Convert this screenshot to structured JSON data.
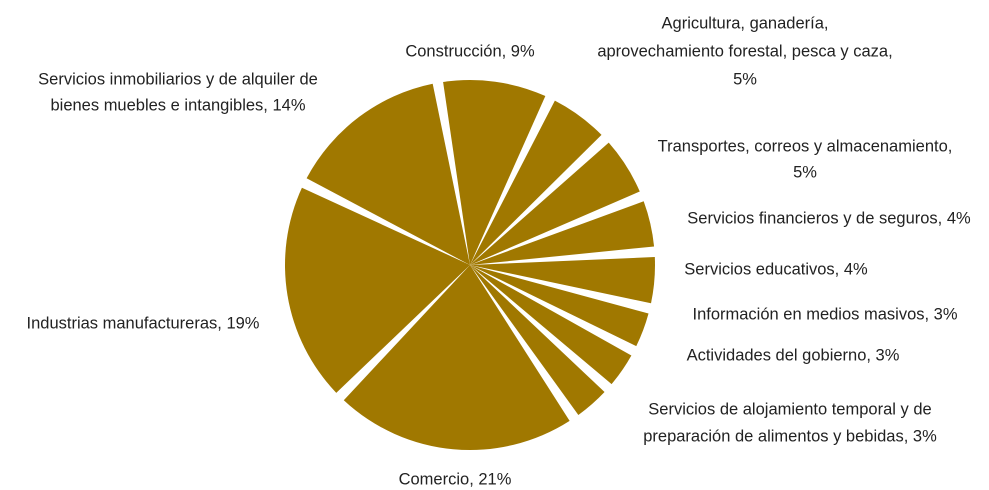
{
  "chart_data": {
    "type": "pie",
    "labels": [
      [
        "Construcción, 9%"
      ],
      [
        "Agricultura, ganadería,",
        "aprovechamiento forestal, pesca y caza,",
        "5%"
      ],
      [
        "Transportes, correos y almacenamiento,",
        "5%"
      ],
      [
        "Servicios financieros y de seguros, 4%"
      ],
      [
        "Servicios educativos, 4%"
      ],
      [
        "Información en medios masivos, 3%"
      ],
      [
        "Actividades del gobierno, 3%"
      ],
      [
        "Servicios de alojamiento temporal y de",
        "preparación de alimentos y bebidas, 3%"
      ],
      [
        "Comercio, 21%"
      ],
      [
        "Industrias manufactureras, 19%"
      ],
      [
        "Servicios inmobiliarios y de alquiler de",
        "bienes muebles e intangibles, 14%"
      ]
    ],
    "values": [
      9,
      5,
      5,
      4,
      4,
      3,
      3,
      3,
      21,
      19,
      14
    ],
    "color": "#a07800"
  }
}
